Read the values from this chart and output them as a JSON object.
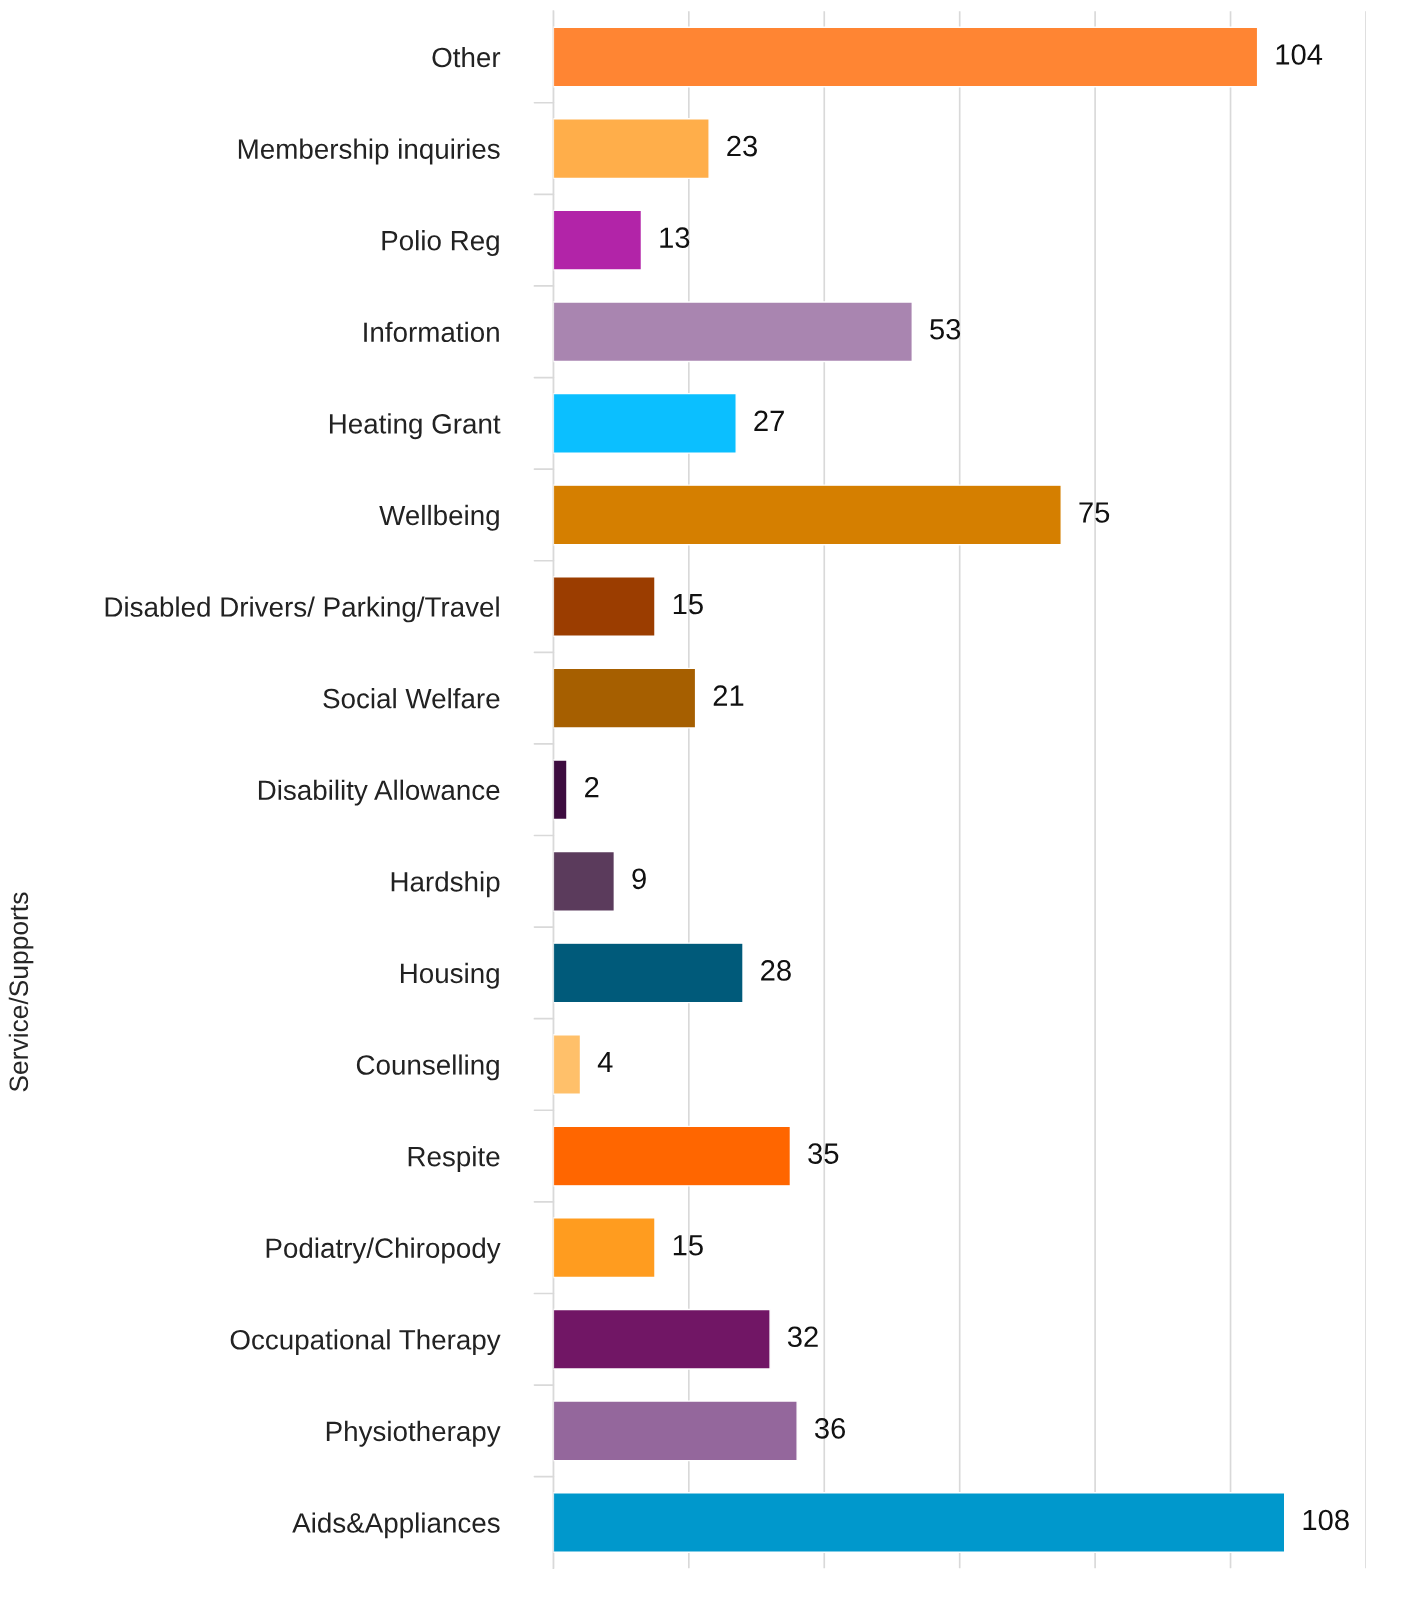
{
  "chart_data": {
    "type": "bar",
    "orientation": "horizontal",
    "ylabel": "Service/Supports",
    "categories": [
      "Other",
      "Membership inquiries",
      "Polio Reg",
      "Information",
      "Heating Grant",
      "Wellbeing",
      "Disabled Drivers/ Parking/Travel",
      "Social Welfare",
      "Disability Allowance",
      "Hardship",
      "Housing",
      "Counselling",
      "Respite",
      "Podiatry/Chiropody",
      "Occupational Therapy",
      "Physiotherapy",
      "Aids&Appliances"
    ],
    "values": [
      104,
      23,
      13,
      53,
      27,
      75,
      15,
      21,
      2,
      9,
      28,
      4,
      35,
      15,
      32,
      36,
      108
    ],
    "colors": [
      "#ff8533",
      "#ffae4a",
      "#b224a8",
      "#a985b0",
      "#0bbfff",
      "#d57f00",
      "#9b3d00",
      "#a65f00",
      "#3d0c3f",
      "#5b3b5c",
      "#005a7a",
      "#ffc06a",
      "#ff6600",
      "#ff9c1f",
      "#711665",
      "#94679c",
      "#0098cc"
    ],
    "xlim": [
      0,
      120
    ],
    "xticks": [
      {
        "value": 0,
        "label": null
      },
      {
        "value": 20,
        "label": null
      },
      {
        "value": 40,
        "label": null
      },
      {
        "value": 60,
        "label": null
      },
      {
        "value": 80,
        "label": null
      },
      {
        "value": 100,
        "label": null
      },
      {
        "value": 120,
        "label": null
      }
    ],
    "tick_labels": "y",
    "grid": "x",
    "data_labels": true
  }
}
